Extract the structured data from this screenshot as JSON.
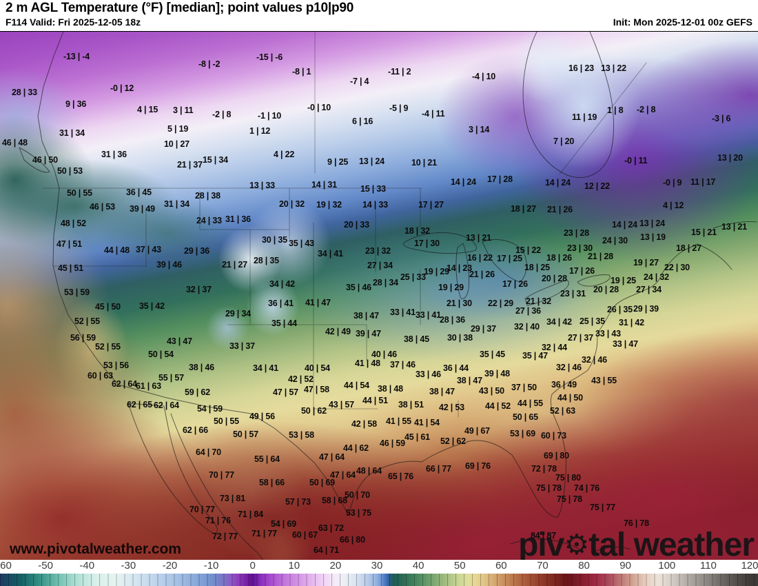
{
  "header": {
    "title": "2 m AGL Temperature (°F) [median]; point values p10|p90",
    "valid": "F114 Valid: Fri 2025-12-05 18z",
    "init": "Init: Mon 2025-12-01 00z GEFS"
  },
  "watermark": {
    "site_url": "www.pivotalweather.com",
    "brand_pre": "piv",
    "gear_icon": "⚙",
    "brand_post": "tal weather"
  },
  "colorbar": {
    "unit": "°F",
    "domain": [
      -61,
      122
    ],
    "segment_degrees": 2,
    "ticks": [
      -60,
      -50,
      -40,
      -30,
      -20,
      -10,
      0,
      10,
      20,
      30,
      40,
      50,
      60,
      70,
      80,
      90,
      100,
      110,
      120
    ],
    "stops": [
      [
        -61,
        "#1d3a63"
      ],
      [
        -56,
        "#145f63"
      ],
      [
        -52,
        "#2e8b80"
      ],
      [
        -47,
        "#6fc0b0"
      ],
      [
        -43,
        "#a8ded2"
      ],
      [
        -38,
        "#d8efe9"
      ],
      [
        -33,
        "#e6f3f2"
      ],
      [
        -28,
        "#d3e4f0"
      ],
      [
        -23,
        "#bcd3ec"
      ],
      [
        -18,
        "#a3c0e5"
      ],
      [
        -14,
        "#8aabdb"
      ],
      [
        -10,
        "#7292cf"
      ],
      [
        -7,
        "#7a74c6"
      ],
      [
        -5,
        "#9055c5"
      ],
      [
        -3,
        "#8a35b8"
      ],
      [
        -1,
        "#6f1ba0"
      ],
      [
        0,
        "#5c1191"
      ],
      [
        2,
        "#8b2fbf"
      ],
      [
        5,
        "#ad54d1"
      ],
      [
        8,
        "#c478de"
      ],
      [
        11,
        "#d594e6"
      ],
      [
        14,
        "#e3b3ef"
      ],
      [
        17,
        "#efd2f5"
      ],
      [
        20,
        "#f5ecf8"
      ],
      [
        22,
        "#edeff6"
      ],
      [
        25,
        "#d8e3f1"
      ],
      [
        28,
        "#b3c9e8"
      ],
      [
        30,
        "#8fb0dd"
      ],
      [
        31,
        "#6f97d3"
      ],
      [
        32,
        "#4a77c4"
      ],
      [
        33,
        "#2b5e8e"
      ],
      [
        34,
        "#1d5c55"
      ],
      [
        36,
        "#2a6a55"
      ],
      [
        38,
        "#3a7a5a"
      ],
      [
        40,
        "#4c8a60"
      ],
      [
        42,
        "#659a68"
      ],
      [
        44,
        "#7fa972"
      ],
      [
        46,
        "#9bb97e"
      ],
      [
        48,
        "#b5c98a"
      ],
      [
        50,
        "#cdd795"
      ],
      [
        52,
        "#dfdf9d"
      ],
      [
        54,
        "#e5d694"
      ],
      [
        56,
        "#e0c286"
      ],
      [
        58,
        "#d7ad75"
      ],
      [
        60,
        "#cc9663"
      ],
      [
        62,
        "#c08153"
      ],
      [
        64,
        "#b56c45"
      ],
      [
        66,
        "#a95939"
      ],
      [
        68,
        "#9d482f"
      ],
      [
        70,
        "#903928"
      ],
      [
        72,
        "#832c22"
      ],
      [
        74,
        "#76201d"
      ],
      [
        76,
        "#6a1419"
      ],
      [
        78,
        "#791a26"
      ],
      [
        80,
        "#8c1c30"
      ],
      [
        83,
        "#a12a44"
      ],
      [
        86,
        "#ad4a5d"
      ],
      [
        89,
        "#c07a77"
      ],
      [
        92,
        "#d4a694"
      ],
      [
        95,
        "#e7d0c2"
      ],
      [
        98,
        "#ece2d8"
      ],
      [
        101,
        "#d6cfc8"
      ],
      [
        105,
        "#b2aca6"
      ],
      [
        110,
        "#8a847e"
      ],
      [
        115,
        "#5f5a55"
      ],
      [
        120,
        "#3e3a37"
      ]
    ]
  },
  "map": {
    "point_values": [
      [
        92,
        75,
        "-13 | -4"
      ],
      [
        288,
        86,
        "-8 | -2"
      ],
      [
        372,
        76,
        "-15 | -6"
      ],
      [
        424,
        97,
        "-8 | 1"
      ],
      [
        563,
        97,
        "-11 | 2"
      ],
      [
        825,
        92,
        "16 | 23"
      ],
      [
        872,
        92,
        "13 | 22"
      ],
      [
        685,
        104,
        "-4 | 10"
      ],
      [
        508,
        111,
        "-7 | 4"
      ],
      [
        160,
        121,
        "-0 | 12"
      ],
      [
        446,
        149,
        "-0 | 10"
      ],
      [
        565,
        150,
        "-5 | 9"
      ],
      [
        95,
        144,
        "9 | 36"
      ],
      [
        17,
        127,
        "28 | 33"
      ],
      [
        199,
        152,
        "4 | 15"
      ],
      [
        251,
        153,
        "3 | 11"
      ],
      [
        308,
        159,
        "-2 | 8"
      ],
      [
        924,
        152,
        "-2 | 8"
      ],
      [
        612,
        158,
        "-4 | 11"
      ],
      [
        680,
        181,
        "3 | 14"
      ],
      [
        374,
        161,
        "-1 | 10"
      ],
      [
        511,
        169,
        "6 | 16"
      ],
      [
        362,
        183,
        "1 | 12"
      ],
      [
        86,
        186,
        "31 | 34"
      ],
      [
        243,
        180,
        "5 | 19"
      ],
      [
        238,
        202,
        "10 | 27"
      ],
      [
        3,
        200,
        "46 | 48"
      ],
      [
        147,
        217,
        "31 | 36"
      ],
      [
        257,
        232,
        "21 | 37"
      ],
      [
        294,
        225,
        "15 | 34"
      ],
      [
        47,
        225,
        "46 | 50"
      ],
      [
        83,
        241,
        "50 | 53"
      ],
      [
        397,
        217,
        "4 | 22"
      ],
      [
        475,
        228,
        "9 | 25"
      ],
      [
        521,
        227,
        "13 | 24"
      ],
      [
        597,
        229,
        "10 | 21"
      ],
      [
        654,
        257,
        "14 | 24"
      ],
      [
        707,
        253,
        "17 | 28"
      ],
      [
        791,
        258,
        "14 | 24"
      ],
      [
        362,
        262,
        "13 | 33"
      ],
      [
        452,
        261,
        "14 | 31"
      ],
      [
        523,
        267,
        "15 | 33"
      ],
      [
        803,
        198,
        "7 | 20"
      ],
      [
        830,
        163,
        "11 | 19"
      ],
      [
        881,
        153,
        "1 | 8"
      ],
      [
        1033,
        165,
        "-3 | 6"
      ],
      [
        906,
        226,
        "-0 | 11"
      ],
      [
        1041,
        222,
        "13 | 20"
      ],
      [
        962,
        258,
        "-0 | 9"
      ],
      [
        1002,
        257,
        "11 | 17"
      ],
      [
        848,
        263,
        "12 | 22"
      ],
      [
        741,
        296,
        "18 | 27"
      ],
      [
        794,
        297,
        "21 | 26"
      ],
      [
        962,
        291,
        "4 | 12"
      ],
      [
        405,
        289,
        "20 | 32"
      ],
      [
        459,
        290,
        "19 | 32"
      ],
      [
        526,
        290,
        "14 | 33"
      ],
      [
        607,
        290,
        "17 | 27"
      ],
      [
        188,
        296,
        "39 | 49"
      ],
      [
        130,
        293,
        "46 | 53"
      ],
      [
        238,
        289,
        "31 | 34"
      ],
      [
        283,
        277,
        "28 | 38"
      ],
      [
        183,
        272,
        "36 | 45"
      ],
      [
        97,
        273,
        "50 | 55"
      ],
      [
        88,
        317,
        "48 | 52"
      ],
      [
        285,
        313,
        "24 | 33"
      ],
      [
        327,
        311,
        "31 | 36"
      ],
      [
        82,
        347,
        "47 | 51"
      ],
      [
        151,
        356,
        "44 | 48"
      ],
      [
        197,
        355,
        "37 | 43"
      ],
      [
        267,
        357,
        "29 | 36"
      ],
      [
        227,
        377,
        "39 | 46"
      ],
      [
        322,
        377,
        "21 | 27"
      ],
      [
        84,
        382,
        "45 | 51"
      ],
      [
        93,
        417,
        "53 | 59"
      ],
      [
        270,
        413,
        "32 | 37"
      ],
      [
        138,
        438,
        "45 | 50"
      ],
      [
        202,
        437,
        "35 | 42"
      ],
      [
        327,
        448,
        "29 | 34"
      ],
      [
        108,
        459,
        "52 | 55"
      ],
      [
        102,
        483,
        "56 | 59"
      ],
      [
        138,
        496,
        "52 | 55"
      ],
      [
        242,
        488,
        "43 | 47"
      ],
      [
        333,
        495,
        "33 | 37"
      ],
      [
        215,
        507,
        "50 | 54"
      ],
      [
        150,
        523,
        "53 | 56"
      ],
      [
        274,
        526,
        "38 | 46"
      ],
      [
        127,
        538,
        "60 | 63"
      ],
      [
        230,
        541,
        "55 | 57"
      ],
      [
        162,
        550,
        "62 | 64"
      ],
      [
        197,
        553,
        "61 | 63"
      ],
      [
        499,
        319,
        "20 | 33"
      ],
      [
        587,
        328,
        "18 | 32"
      ],
      [
        380,
        341,
        "30 | 35"
      ],
      [
        419,
        346,
        "35 | 43"
      ],
      [
        601,
        346,
        "17 | 30"
      ],
      [
        676,
        338,
        "13 | 21"
      ],
      [
        461,
        361,
        "34 | 41"
      ],
      [
        530,
        357,
        "23 | 32"
      ],
      [
        368,
        371,
        "28 | 35"
      ],
      [
        678,
        367,
        "16 | 22"
      ],
      [
        533,
        378,
        "27 | 34"
      ],
      [
        615,
        387,
        "19 | 29"
      ],
      [
        648,
        382,
        "14 | 23"
      ],
      [
        681,
        391,
        "21 | 26"
      ],
      [
        581,
        395,
        "25 | 33"
      ],
      [
        541,
        403,
        "28 | 34"
      ],
      [
        391,
        405,
        "34 | 42"
      ],
      [
        502,
        410,
        "35 | 46"
      ],
      [
        636,
        410,
        "19 | 29"
      ],
      [
        389,
        433,
        "36 | 41"
      ],
      [
        443,
        432,
        "41 | 47"
      ],
      [
        648,
        433,
        "21 | 30"
      ],
      [
        708,
        433,
        "22 | 29"
      ],
      [
        513,
        451,
        "38 | 47"
      ],
      [
        566,
        446,
        "33 | 41"
      ],
      [
        603,
        450,
        "33 | 41"
      ],
      [
        638,
        457,
        "28 | 36"
      ],
      [
        394,
        462,
        "35 | 44"
      ],
      [
        683,
        470,
        "29 | 37"
      ],
      [
        472,
        474,
        "42 | 49"
      ],
      [
        516,
        477,
        "39 | 47"
      ],
      [
        586,
        485,
        "38 | 45"
      ],
      [
        649,
        483,
        "30 | 38"
      ],
      [
        696,
        507,
        "35 | 45"
      ],
      [
        539,
        507,
        "40 | 46"
      ],
      [
        515,
        520,
        "41 | 48"
      ],
      [
        566,
        522,
        "37 | 46"
      ],
      [
        367,
        527,
        "34 | 41"
      ],
      [
        442,
        527,
        "40 | 54"
      ],
      [
        643,
        527,
        "36 | 44"
      ],
      [
        603,
        536,
        "33 | 46"
      ],
      [
        703,
        535,
        "39 | 48"
      ],
      [
        418,
        543,
        "42 | 52"
      ],
      [
        663,
        545,
        "38 | 47"
      ],
      [
        499,
        552,
        "44 | 54"
      ],
      [
        888,
        319,
        "14 | 24"
      ],
      [
        928,
        317,
        "13 | 24"
      ],
      [
        1047,
        322,
        "13 | 21"
      ],
      [
        1003,
        330,
        "15 | 21"
      ],
      [
        929,
        337,
        "13 | 19"
      ],
      [
        818,
        331,
        "23 | 28"
      ],
      [
        874,
        342,
        "24 | 30"
      ],
      [
        823,
        353,
        "23 | 30"
      ],
      [
        981,
        353,
        "18 | 27"
      ],
      [
        748,
        356,
        "15 | 22"
      ],
      [
        853,
        365,
        "21 | 28"
      ],
      [
        793,
        367,
        "18 | 26"
      ],
      [
        721,
        368,
        "17 | 25"
      ],
      [
        919,
        374,
        "19 | 27"
      ],
      [
        761,
        381,
        "18 | 25"
      ],
      [
        964,
        381,
        "22 | 30"
      ],
      [
        826,
        386,
        "17 | 26"
      ],
      [
        934,
        395,
        "24 | 32"
      ],
      [
        786,
        397,
        "20 | 28"
      ],
      [
        886,
        400,
        "19 | 25"
      ],
      [
        729,
        405,
        "17 | 26"
      ],
      [
        861,
        413,
        "20 | 28"
      ],
      [
        923,
        413,
        "27 | 34"
      ],
      [
        813,
        419,
        "23 | 31"
      ],
      [
        763,
        430,
        "21 | 32"
      ],
      [
        748,
        444,
        "27 | 36"
      ],
      [
        881,
        442,
        "26 | 35"
      ],
      [
        919,
        441,
        "29 | 39"
      ],
      [
        793,
        460,
        "34 | 42"
      ],
      [
        841,
        459,
        "25 | 35"
      ],
      [
        746,
        467,
        "32 | 40"
      ],
      [
        898,
        461,
        "31 | 42"
      ],
      [
        864,
        477,
        "33 | 43"
      ],
      [
        824,
        483,
        "27 | 37"
      ],
      [
        889,
        492,
        "33 | 47"
      ],
      [
        786,
        497,
        "32 | 44"
      ],
      [
        758,
        509,
        "35 | 47"
      ],
      [
        844,
        515,
        "32 | 46"
      ],
      [
        807,
        526,
        "32 | 46"
      ],
      [
        800,
        551,
        "36 | 49"
      ],
      [
        858,
        545,
        "43 | 55"
      ],
      [
        742,
        555,
        "37 | 50"
      ],
      [
        396,
        562,
        "47 | 57"
      ],
      [
        441,
        558,
        "47 | 58"
      ],
      [
        526,
        574,
        "44 | 51"
      ],
      [
        578,
        580,
        "38 | 51"
      ],
      [
        477,
        580,
        "43 | 57"
      ],
      [
        548,
        557,
        "38 | 48"
      ],
      [
        623,
        561,
        "38 | 47"
      ],
      [
        695,
        560,
        "43 | 50"
      ],
      [
        637,
        584,
        "42 | 53"
      ],
      [
        704,
        582,
        "44 | 52"
      ],
      [
        437,
        589,
        "50 | 62"
      ],
      [
        362,
        597,
        "49 | 56"
      ],
      [
        510,
        608,
        "42 | 58"
      ],
      [
        560,
        604,
        "41 | 55"
      ],
      [
        601,
        606,
        "41 | 54"
      ],
      [
        419,
        624,
        "53 | 58"
      ],
      [
        587,
        627,
        "45 | 61"
      ],
      [
        551,
        636,
        "46 | 59"
      ],
      [
        639,
        633,
        "52 | 62"
      ],
      [
        674,
        618,
        "49 | 67"
      ],
      [
        498,
        643,
        "44 | 62"
      ],
      [
        369,
        659,
        "55 | 64"
      ],
      [
        463,
        656,
        "47 | 64"
      ],
      [
        675,
        669,
        "69 | 76"
      ],
      [
        618,
        673,
        "66 | 77"
      ],
      [
        517,
        676,
        "48 | 64"
      ],
      [
        563,
        684,
        "65 | 76"
      ],
      [
        479,
        682,
        "47 | 64"
      ],
      [
        376,
        693,
        "58 | 66"
      ],
      [
        449,
        693,
        "50 | 69"
      ],
      [
        500,
        711,
        "50 | 70"
      ],
      [
        467,
        719,
        "58 | 68"
      ],
      [
        414,
        721,
        "57 | 73"
      ],
      [
        345,
        739,
        "71 | 84"
      ],
      [
        502,
        737,
        "53 | 75"
      ],
      [
        393,
        753,
        "54 | 69"
      ],
      [
        462,
        759,
        "63 | 72"
      ],
      [
        365,
        767,
        "71 | 77"
      ],
      [
        424,
        769,
        "60 | 67"
      ],
      [
        493,
        776,
        "66 | 80"
      ],
      [
        455,
        791,
        "64 | 71"
      ],
      [
        268,
        562,
        "59 | 62"
      ],
      [
        184,
        580,
        "62 | 65"
      ],
      [
        223,
        581,
        "62 | 64"
      ],
      [
        286,
        586,
        "54 | 59"
      ],
      [
        310,
        604,
        "50 | 55"
      ],
      [
        265,
        617,
        "62 | 66"
      ],
      [
        338,
        623,
        "50 | 57"
      ],
      [
        284,
        649,
        "64 | 70"
      ],
      [
        303,
        682,
        "70 | 77"
      ],
      [
        319,
        716,
        "73 | 81"
      ],
      [
        275,
        732,
        "70 | 77"
      ],
      [
        298,
        748,
        "71 | 76"
      ],
      [
        308,
        771,
        "72 | 77"
      ],
      [
        751,
        578,
        "44 | 55"
      ],
      [
        809,
        570,
        "44 | 50"
      ],
      [
        798,
        589,
        "52 | 63"
      ],
      [
        744,
        598,
        "50 | 65"
      ],
      [
        740,
        622,
        "53 | 69"
      ],
      [
        785,
        625,
        "60 | 73"
      ],
      [
        789,
        654,
        "69 | 80"
      ],
      [
        771,
        673,
        "72 | 78"
      ],
      [
        806,
        686,
        "75 | 80"
      ],
      [
        778,
        701,
        "75 | 78"
      ],
      [
        833,
        701,
        "74 | 76"
      ],
      [
        808,
        717,
        "75 | 78"
      ],
      [
        856,
        729,
        "75 | 77"
      ],
      [
        905,
        752,
        "76 | 78"
      ],
      [
        770,
        770,
        "84 | 87"
      ]
    ]
  }
}
